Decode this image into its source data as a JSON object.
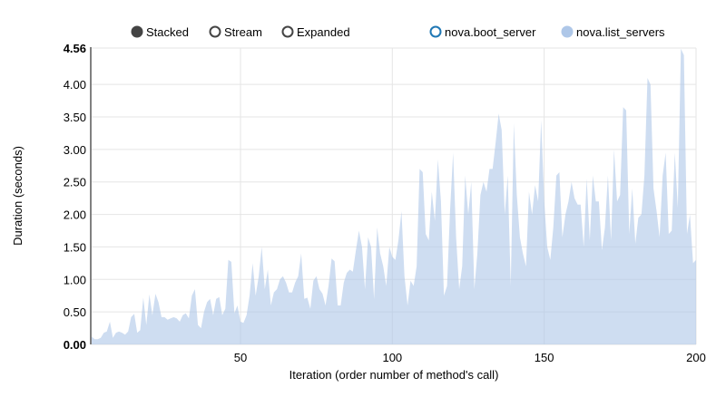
{
  "chart_data": {
    "type": "area",
    "mode": "stacked",
    "controls": [
      {
        "label": "Stacked",
        "selected": true
      },
      {
        "label": "Stream",
        "selected": false
      },
      {
        "label": "Expanded",
        "selected": false
      }
    ],
    "legend": [
      {
        "name": "nova.boot_server",
        "color": "#1f77b4",
        "enabled": false
      },
      {
        "name": "nova.list_servers",
        "color": "#aec7e8",
        "enabled": true
      }
    ],
    "xlabel": "Iteration (order number of method's call)",
    "ylabel": "Duration (seconds)",
    "xlim": [
      1,
      200
    ],
    "ylim": [
      0,
      4.56
    ],
    "xticks": [
      "50",
      "100",
      "150",
      "200"
    ],
    "yticks": [
      "0.00",
      "0.50",
      "1.00",
      "1.50",
      "2.00",
      "2.50",
      "3.00",
      "3.50",
      "4.00",
      "4.56"
    ],
    "grid": true,
    "series": [
      {
        "name": "nova.list_servers",
        "color": "#aec7e8",
        "values": [
          0.12,
          0.08,
          0.08,
          0.1,
          0.18,
          0.2,
          0.35,
          0.1,
          0.18,
          0.2,
          0.18,
          0.15,
          0.2,
          0.42,
          0.47,
          0.18,
          0.22,
          0.72,
          0.3,
          0.77,
          0.45,
          0.78,
          0.65,
          0.42,
          0.42,
          0.38,
          0.4,
          0.42,
          0.4,
          0.35,
          0.45,
          0.48,
          0.4,
          0.75,
          0.85,
          0.3,
          0.25,
          0.5,
          0.65,
          0.7,
          0.45,
          0.7,
          0.73,
          0.45,
          0.55,
          1.3,
          1.27,
          0.48,
          0.6,
          0.35,
          0.33,
          0.45,
          0.75,
          1.25,
          0.75,
          1.05,
          1.5,
          0.85,
          1.15,
          0.6,
          0.8,
          0.85,
          1.0,
          1.05,
          0.95,
          0.8,
          0.8,
          0.95,
          1.05,
          1.4,
          0.7,
          0.72,
          0.55,
          0.98,
          1.05,
          0.85,
          0.78,
          0.6,
          0.9,
          1.32,
          1.28,
          0.6,
          0.6,
          0.95,
          1.1,
          1.15,
          1.12,
          1.45,
          1.75,
          1.5,
          0.85,
          1.65,
          1.5,
          0.7,
          1.8,
          1.4,
          1.2,
          0.9,
          1.5,
          1.35,
          1.3,
          1.6,
          2.05,
          1.05,
          0.6,
          0.98,
          0.9,
          1.2,
          2.7,
          2.65,
          1.7,
          1.6,
          2.35,
          1.9,
          2.85,
          2.2,
          0.75,
          0.9,
          2.05,
          2.95,
          1.65,
          0.85,
          1.2,
          2.6,
          2.0,
          2.5,
          0.85,
          1.4,
          2.3,
          2.5,
          2.35,
          2.7,
          2.7,
          3.1,
          3.55,
          3.3,
          2.0,
          2.6,
          0.9,
          3.4,
          2.3,
          1.65,
          1.4,
          1.2,
          2.35,
          2.0,
          2.45,
          2.2,
          3.45,
          2.2,
          1.5,
          1.3,
          1.8,
          2.6,
          2.65,
          1.65,
          2.0,
          2.2,
          2.5,
          2.25,
          2.15,
          2.15,
          1.5,
          2.55,
          1.6,
          2.6,
          2.2,
          2.2,
          1.45,
          1.8,
          2.6,
          1.6,
          3.0,
          2.2,
          2.3,
          3.65,
          3.6,
          1.7,
          2.4,
          1.55,
          1.95,
          2.0,
          2.6,
          4.1,
          4.0,
          2.4,
          2.05,
          1.65,
          2.6,
          2.95,
          1.7,
          1.75,
          2.95,
          2.1,
          4.55,
          4.45,
          1.7,
          2.0,
          1.25,
          1.3
        ]
      }
    ]
  }
}
